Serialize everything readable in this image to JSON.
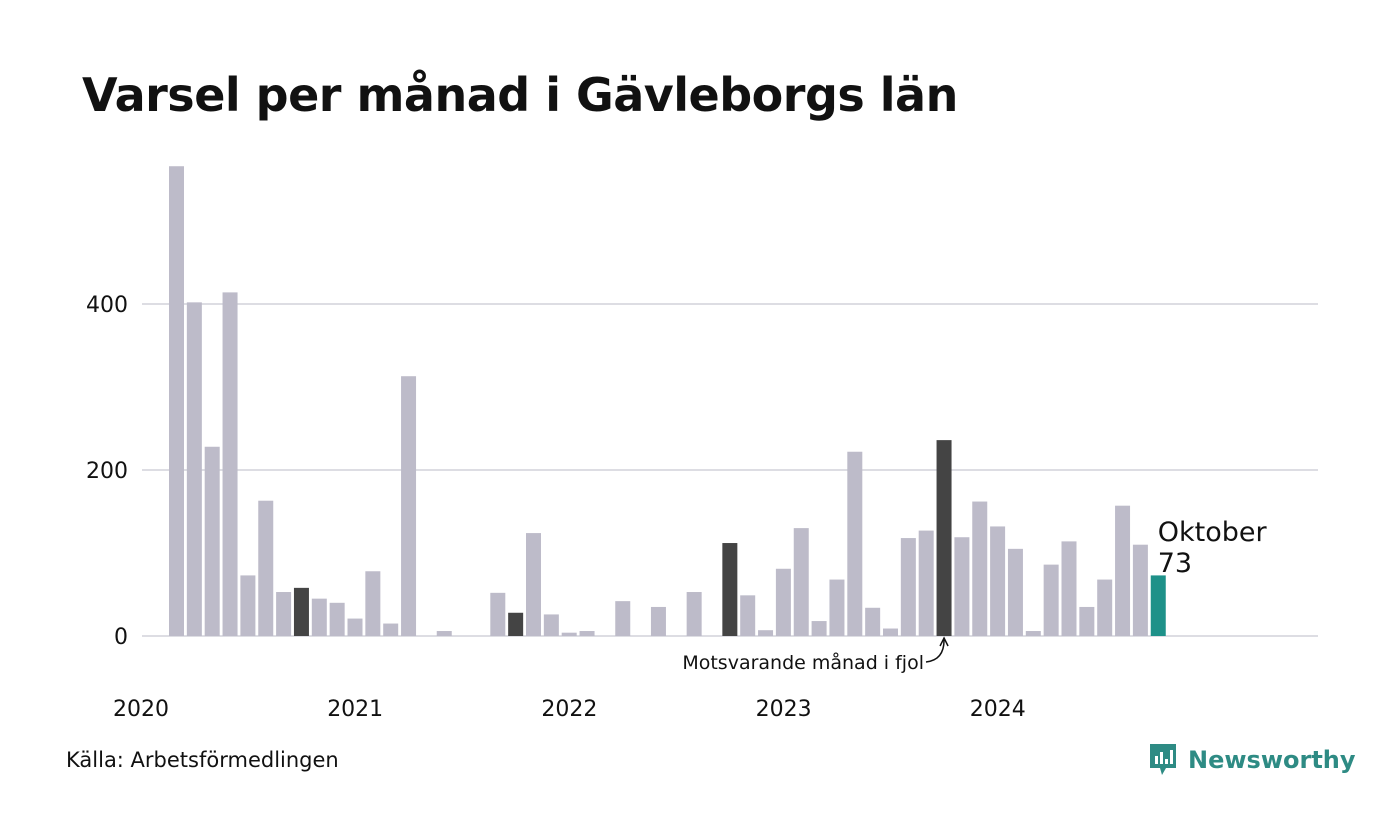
{
  "title": "Varsel per månad i Gävleborgs län",
  "source": "Källa: Arbetsförmedlingen",
  "brand": {
    "name": "Newsworthy",
    "color": "#2e8b84",
    "icon": "bar-chart-speech-bubble-icon"
  },
  "chart_data": {
    "type": "bar",
    "x_start": "2020-01",
    "x_ticks": [
      "2020",
      "2021",
      "2022",
      "2023",
      "2024"
    ],
    "y_ticks": [
      "0",
      "200",
      "400"
    ],
    "ylim": [
      0,
      580
    ],
    "colors": {
      "default": "#bdbbc9",
      "comparison": "#444444",
      "current": "#1e9189",
      "grid": "#dddde3"
    },
    "values": [
      566,
      402,
      228,
      414,
      73,
      163,
      53,
      58,
      45,
      40,
      21,
      78,
      15,
      313,
      0,
      6,
      0,
      0,
      52,
      28,
      124,
      26,
      4,
      6,
      0,
      42,
      0,
      35,
      0,
      53,
      0,
      112,
      49,
      7,
      81,
      130,
      18,
      68,
      222,
      34,
      9,
      118,
      127,
      236,
      119,
      162,
      132,
      105,
      6,
      86,
      114,
      35,
      68,
      157,
      110,
      73
    ],
    "comparison_indices": [
      7,
      19,
      31,
      43
    ],
    "current_index": 55,
    "annotations": {
      "current_month": "Oktober",
      "current_value": "73",
      "comparison_note": "Motsvarande månad i fjol"
    }
  }
}
